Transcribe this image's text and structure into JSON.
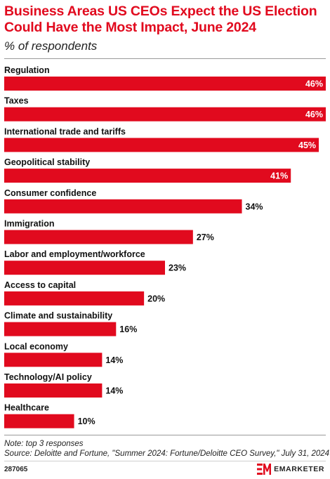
{
  "header": {
    "title": "Business Areas US CEOs Expect the US Election Could Have the Most Impact, June 2024",
    "subtitle": "% of respondents"
  },
  "chart_data": {
    "type": "bar",
    "orientation": "horizontal",
    "categories": [
      "Regulation",
      "Taxes",
      "International trade and tariffs",
      "Geopolitical stability",
      "Consumer confidence",
      "Immigration",
      "Labor and employment/workforce",
      "Access to capital",
      "Climate and sustainability",
      "Local economy",
      "Technology/AI policy",
      "Healthcare"
    ],
    "values": [
      46,
      46,
      45,
      41,
      34,
      27,
      23,
      20,
      16,
      14,
      14,
      10
    ],
    "value_labels": [
      "46%",
      "46%",
      "45%",
      "41%",
      "34%",
      "27%",
      "23%",
      "20%",
      "16%",
      "14%",
      "14%",
      "10%"
    ],
    "xlim": [
      0,
      46
    ],
    "bar_color": "#e10a1e",
    "inside_label_color": "#ffffff",
    "outside_label_color": "#111111",
    "grid": false,
    "legend": "none"
  },
  "footer": {
    "note": "Note: top 3 responses",
    "source": "Source: Deloitte and Fortune, \"Summer 2024: Fortune/Deloitte CEO Survey,\" July 31, 2024",
    "chart_id": "287065",
    "brand_icon": "emarketer-logo-icon",
    "brand_name": "EMARKETER",
    "brand_color": "#e10a1e"
  }
}
